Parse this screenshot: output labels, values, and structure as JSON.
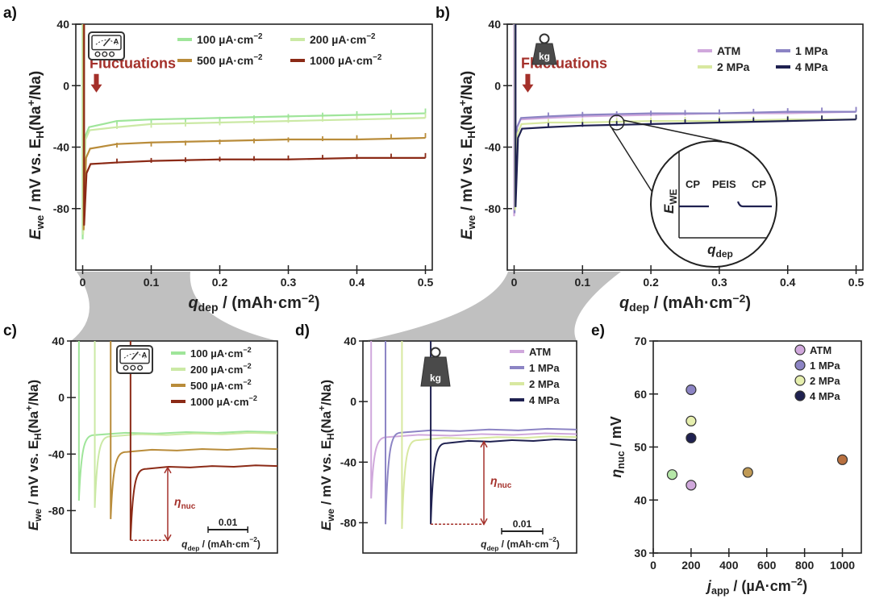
{
  "figure": {
    "connector_color": "#b5b5b5"
  },
  "chart_data": [
    {
      "id": "a",
      "panel_label": "a)",
      "type": "line",
      "xlabel_main": "q",
      "xlabel_sub": "dep",
      "xlabel_unit": " / (mAh·cm",
      "xlabel_exp": "−2",
      "xlabel_close": ")",
      "ylabel_main": "E",
      "ylabel_sub": "we",
      "ylabel_mid": " / mV vs. E",
      "ylabel_sub2": "H",
      "ylabel_tail": "(Na",
      "ylabel_sup": "+",
      "ylabel_end": "/Na)",
      "xlim": [
        -0.01,
        0.51
      ],
      "ylim": [
        -120,
        40
      ],
      "xticks": [
        "0",
        "0.1",
        "0.2",
        "0.3",
        "0.4",
        "0.5"
      ],
      "xtick_values": [
        0,
        0.1,
        0.2,
        0.3,
        0.4,
        0.5
      ],
      "yticks": [
        "40",
        "0",
        "-40",
        "-80"
      ],
      "ytick_values": [
        40,
        0,
        -40,
        -80
      ],
      "grid": false,
      "legend_placement": "top-right",
      "icon": "ammeter-icon",
      "icon_label": "A",
      "annotation": {
        "text": "Fluctuations",
        "color": "#a4302a"
      },
      "series": [
        {
          "name": "100 µA·cm",
          "exp": "−2",
          "color": "#9fe59a",
          "x": [
            0,
            0.05,
            0.1,
            0.2,
            0.3,
            0.4,
            0.5
          ],
          "y": [
            -27,
            -23,
            -22,
            -21,
            -20,
            -19,
            -18
          ]
        },
        {
          "name": "200 µA·cm",
          "exp": "−2",
          "color": "#cbe9a5",
          "x": [
            0,
            0.05,
            0.1,
            0.2,
            0.3,
            0.4,
            0.5
          ],
          "y": [
            -29,
            -27,
            -25,
            -24,
            -23,
            -22,
            -21
          ]
        },
        {
          "name": "500 µA·cm",
          "exp": "−2",
          "color": "#b98c3a",
          "x": [
            0,
            0.05,
            0.1,
            0.2,
            0.3,
            0.4,
            0.5
          ],
          "y": [
            -41,
            -38,
            -37,
            -36,
            -35,
            -35,
            -34
          ]
        },
        {
          "name": "1000 µA·cm",
          "exp": "−2",
          "color": "#8b2a16",
          "x": [
            0,
            0.05,
            0.1,
            0.2,
            0.3,
            0.4,
            0.5
          ],
          "y": [
            -51,
            -50,
            -49,
            -48,
            -48,
            -47,
            -47
          ]
        }
      ]
    },
    {
      "id": "b",
      "panel_label": "b)",
      "type": "line",
      "xlabel_main": "q",
      "xlabel_sub": "dep",
      "xlabel_unit": " / (mAh·cm",
      "xlabel_exp": "−2",
      "xlabel_close": ")",
      "ylabel_main": "E",
      "ylabel_sub": "we",
      "ylabel_mid": " / mV vs. E",
      "ylabel_sub2": "H",
      "ylabel_tail": "(Na",
      "ylabel_sup": "+",
      "ylabel_end": "/Na)",
      "xlim": [
        -0.01,
        0.51
      ],
      "ylim": [
        -120,
        40
      ],
      "xticks": [
        "0",
        "0.1",
        "0.2",
        "0.3",
        "0.4",
        "0.5"
      ],
      "xtick_values": [
        0,
        0.1,
        0.2,
        0.3,
        0.4,
        0.5
      ],
      "yticks": [
        "40",
        "0",
        "-40",
        "-80"
      ],
      "ytick_values": [
        40,
        0,
        -40,
        -80
      ],
      "grid": false,
      "legend_placement": "top-right",
      "icon": "weight-icon",
      "icon_label": "kg",
      "annotation": {
        "text": "Fluctuations",
        "color": "#a4302a"
      },
      "inset": {
        "ylabel": "E",
        "ylabel_sub": "WE",
        "xlabel": "q",
        "xlabel_sub": "dep",
        "labels": [
          "CP",
          "PEIS",
          "CP"
        ]
      },
      "series": [
        {
          "name": "ATM",
          "color": "#d0a8dc",
          "x": [
            0,
            0.05,
            0.1,
            0.2,
            0.3,
            0.4,
            0.5
          ],
          "y": [
            -22,
            -21,
            -20,
            -19,
            -18,
            -18,
            -17
          ]
        },
        {
          "name": "1 MPa",
          "color": "#8c84c4",
          "x": [
            0,
            0.05,
            0.1,
            0.2,
            0.3,
            0.4,
            0.5
          ],
          "y": [
            -21,
            -20,
            -19,
            -18,
            -18,
            -17,
            -17
          ]
        },
        {
          "name": "2 MPa",
          "color": "#d8e8a0",
          "x": [
            0,
            0.05,
            0.1,
            0.2,
            0.3,
            0.4,
            0.5
          ],
          "y": [
            -25,
            -24,
            -24,
            -23,
            -23,
            -22,
            -22
          ]
        },
        {
          "name": "4 MPa",
          "color": "#1f2150",
          "x": [
            0,
            0.05,
            0.1,
            0.2,
            0.3,
            0.4,
            0.5
          ],
          "y": [
            -28,
            -27,
            -26,
            -25,
            -24,
            -23,
            -22
          ]
        }
      ]
    },
    {
      "id": "c",
      "panel_label": "c)",
      "type": "line",
      "xlabel_main": "q",
      "xlabel_sub": "dep",
      "xlabel_unit": " / (mAh·cm",
      "xlabel_exp": "−2",
      "xlabel_close": ")",
      "ylabel_main": "E",
      "ylabel_sub": "we",
      "ylabel_mid": " / mV vs. E",
      "ylabel_sub2": "H",
      "ylabel_tail": "(Na",
      "ylabel_sup": "+",
      "ylabel_end": "/Na)",
      "xlim": [
        -0.002,
        0.05
      ],
      "ylim": [
        -110,
        40
      ],
      "yticks": [
        "40",
        "0",
        "-40",
        "-80"
      ],
      "ytick_values": [
        40,
        0,
        -40,
        -80
      ],
      "scalebar": {
        "label": "0.01",
        "length": 0.01
      },
      "grid": false,
      "legend_placement": "top-right",
      "icon": "ammeter-icon",
      "icon_label": "A",
      "eta_label": "η",
      "eta_sub": "nuc",
      "eta_color": "#a4302a",
      "series": [
        {
          "name": "100 µA·cm",
          "exp": "−2",
          "color": "#9fe59a",
          "x_start": 0.0,
          "min": -73,
          "plateau": -27
        },
        {
          "name": "200 µA·cm",
          "exp": "−2",
          "color": "#cbe9a5",
          "x_start": 0.004,
          "min": -78,
          "plateau": -28
        },
        {
          "name": "500 µA·cm",
          "exp": "−2",
          "color": "#b98c3a",
          "x_start": 0.008,
          "min": -86,
          "plateau": -39
        },
        {
          "name": "1000 µA·cm",
          "exp": "−2",
          "color": "#8b2a16",
          "x_start": 0.013,
          "min": -101,
          "plateau": -51
        }
      ]
    },
    {
      "id": "d",
      "panel_label": "d)",
      "type": "line",
      "xlabel_main": "q",
      "xlabel_sub": "dep",
      "xlabel_unit": " / (mAh·cm",
      "xlabel_exp": "−2",
      "xlabel_close": ")",
      "ylabel_main": "E",
      "ylabel_sub": "we",
      "ylabel_mid": " / mV vs. E",
      "ylabel_sub2": "H",
      "ylabel_tail": "(Na",
      "ylabel_sup": "+",
      "ylabel_end": "/Na)",
      "xlim": [
        -0.002,
        0.05
      ],
      "ylim": [
        -100,
        40
      ],
      "yticks": [
        "40",
        "0",
        "-40",
        "-80"
      ],
      "ytick_values": [
        40,
        0,
        -40,
        -80
      ],
      "scalebar": {
        "label": "0.01",
        "length": 0.01
      },
      "grid": false,
      "legend_placement": "top-right",
      "icon": "weight-icon",
      "icon_label": "kg",
      "eta_label": "η",
      "eta_sub": "nuc",
      "eta_color": "#a4302a",
      "series": [
        {
          "name": "ATM",
          "color": "#d0a8dc",
          "x_start": 0.0,
          "min": -64,
          "plateau": -24
        },
        {
          "name": "1 MPa",
          "color": "#8c84c4",
          "x_start": 0.0035,
          "min": -81,
          "plateau": -21
        },
        {
          "name": "2 MPa",
          "color": "#d8e8a0",
          "x_start": 0.0075,
          "min": -84,
          "plateau": -26
        },
        {
          "name": "4 MPa",
          "color": "#1f2150",
          "x_start": 0.0145,
          "min": -81,
          "plateau": -28
        }
      ]
    },
    {
      "id": "e",
      "panel_label": "e)",
      "type": "scatter",
      "xlabel_main": "j",
      "xlabel_sub": "app",
      "xlabel_unit": " / (µA·cm",
      "xlabel_exp": "−2",
      "xlabel_close": ")",
      "ylabel_main": "η",
      "ylabel_sub": "nuc",
      "ylabel_unit": " / mV",
      "xlim": [
        0,
        1100
      ],
      "ylim": [
        30,
        70
      ],
      "xticks": [
        "0",
        "200",
        "400",
        "600",
        "800",
        "1000"
      ],
      "xtick_values": [
        0,
        200,
        400,
        600,
        800,
        1000
      ],
      "yticks": [
        "30",
        "40",
        "50",
        "60",
        "70"
      ],
      "ytick_values": [
        30,
        40,
        50,
        60,
        70
      ],
      "grid": false,
      "legend_placement": "top-right",
      "legend": [
        {
          "name": "ATM",
          "color": "#d0a8dc"
        },
        {
          "name": "1 MPa",
          "color": "#8c84c4"
        },
        {
          "name": "2 MPa",
          "color": "#e6efae"
        },
        {
          "name": "4 MPa",
          "color": "#1f2150"
        }
      ],
      "points": [
        {
          "x": 100,
          "y": 44.8,
          "color": "#b6e8a8"
        },
        {
          "x": 200,
          "y": 42.8,
          "color": "#d0a8dc"
        },
        {
          "x": 200,
          "y": 60.8,
          "color": "#8c84c4"
        },
        {
          "x": 200,
          "y": 54.9,
          "color": "#e6efae"
        },
        {
          "x": 200,
          "y": 51.7,
          "color": "#1f2150"
        },
        {
          "x": 500,
          "y": 45.2,
          "color": "#c09a55"
        },
        {
          "x": 1000,
          "y": 47.6,
          "color": "#b87040"
        }
      ]
    }
  ]
}
